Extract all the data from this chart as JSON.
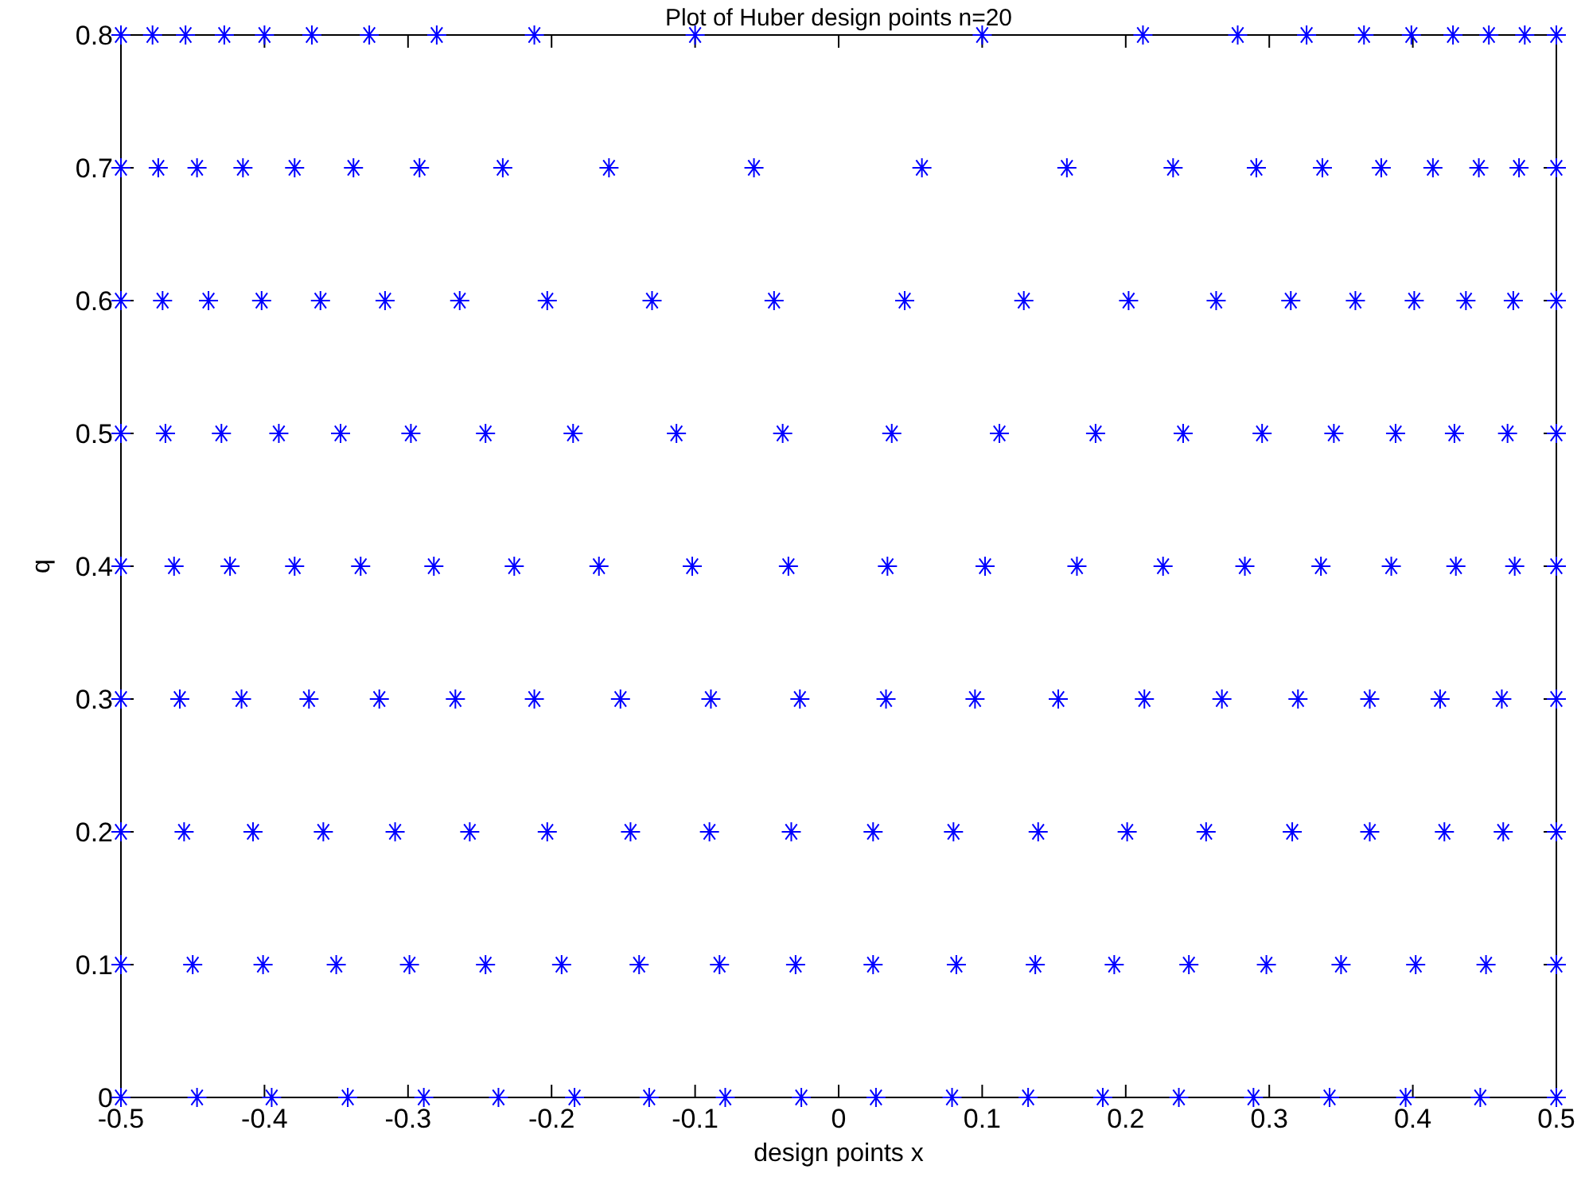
{
  "chart_data": {
    "type": "scatter",
    "title": "Plot of  Huber design points n=20",
    "xlabel": "design points x",
    "ylabel": "q",
    "marker": "cross",
    "grid": false,
    "xlim": [
      -0.5,
      0.5
    ],
    "xticks": [
      -0.5,
      -0.4,
      -0.3,
      -0.2,
      -0.1,
      0,
      0.1,
      0.2,
      0.3,
      0.4,
      0.5
    ],
    "ylim": [
      0,
      0.8
    ],
    "yticks": [
      0,
      0.1,
      0.2,
      0.3,
      0.4,
      0.5,
      0.6,
      0.7,
      0.8
    ],
    "series": [
      {
        "color": "#0000ff",
        "x": [
          -0.5,
          -0.478,
          -0.455,
          -0.428,
          -0.4,
          -0.367,
          -0.327,
          -0.28,
          -0.212,
          -0.1,
          0.1,
          0.212,
          0.278,
          0.326,
          0.366,
          0.399,
          0.428,
          0.453,
          0.478,
          0.5
        ],
        "values": [
          0.8,
          0.8,
          0.8,
          0.8,
          0.8,
          0.8,
          0.8,
          0.8,
          0.8,
          0.8,
          0.8,
          0.8,
          0.8,
          0.8,
          0.8,
          0.8,
          0.8,
          0.8,
          0.8,
          0.8
        ]
      },
      {
        "color": "#0000ff",
        "x": [
          -0.5,
          -0.474,
          -0.447,
          -0.415,
          -0.379,
          -0.338,
          -0.292,
          -0.234,
          -0.16,
          -0.059,
          0.058,
          0.159,
          0.233,
          0.291,
          0.337,
          0.378,
          0.414,
          0.446,
          0.474,
          0.5
        ],
        "values": [
          0.7,
          0.7,
          0.7,
          0.7,
          0.7,
          0.7,
          0.7,
          0.7,
          0.7,
          0.7,
          0.7,
          0.7,
          0.7,
          0.7,
          0.7,
          0.7,
          0.7,
          0.7,
          0.7,
          0.7
        ]
      },
      {
        "color": "#0000ff",
        "x": [
          -0.5,
          -0.471,
          -0.439,
          -0.402,
          -0.361,
          -0.316,
          -0.264,
          -0.203,
          -0.13,
          -0.045,
          0.046,
          0.129,
          0.202,
          0.263,
          0.315,
          0.36,
          0.401,
          0.437,
          0.47,
          0.5
        ],
        "values": [
          0.6,
          0.6,
          0.6,
          0.6,
          0.6,
          0.6,
          0.6,
          0.6,
          0.6,
          0.6,
          0.6,
          0.6,
          0.6,
          0.6,
          0.6,
          0.6,
          0.6,
          0.6,
          0.6,
          0.6
        ]
      },
      {
        "color": "#0000ff",
        "x": [
          -0.5,
          -0.469,
          -0.43,
          -0.39,
          -0.347,
          -0.298,
          -0.246,
          -0.185,
          -0.113,
          -0.039,
          0.037,
          0.112,
          0.179,
          0.24,
          0.295,
          0.345,
          0.388,
          0.429,
          0.466,
          0.5
        ],
        "values": [
          0.5,
          0.5,
          0.5,
          0.5,
          0.5,
          0.5,
          0.5,
          0.5,
          0.5,
          0.5,
          0.5,
          0.5,
          0.5,
          0.5,
          0.5,
          0.5,
          0.5,
          0.5,
          0.5,
          0.5
        ]
      },
      {
        "color": "#0000ff",
        "x": [
          -0.5,
          -0.463,
          -0.424,
          -0.379,
          -0.333,
          -0.282,
          -0.226,
          -0.167,
          -0.102,
          -0.035,
          0.034,
          0.102,
          0.166,
          0.226,
          0.283,
          0.336,
          0.385,
          0.43,
          0.471,
          0.5
        ],
        "values": [
          0.4,
          0.4,
          0.4,
          0.4,
          0.4,
          0.4,
          0.4,
          0.4,
          0.4,
          0.4,
          0.4,
          0.4,
          0.4,
          0.4,
          0.4,
          0.4,
          0.4,
          0.4,
          0.4,
          0.4
        ]
      },
      {
        "color": "#0000ff",
        "x": [
          -0.5,
          -0.459,
          -0.416,
          -0.369,
          -0.32,
          -0.267,
          -0.212,
          -0.152,
          -0.089,
          -0.027,
          0.033,
          0.095,
          0.153,
          0.213,
          0.267,
          0.32,
          0.37,
          0.419,
          0.462,
          0.5
        ],
        "values": [
          0.3,
          0.3,
          0.3,
          0.3,
          0.3,
          0.3,
          0.3,
          0.3,
          0.3,
          0.3,
          0.3,
          0.3,
          0.3,
          0.3,
          0.3,
          0.3,
          0.3,
          0.3,
          0.3,
          0.3
        ]
      },
      {
        "color": "#0000ff",
        "x": [
          -0.5,
          -0.456,
          -0.408,
          -0.359,
          -0.309,
          -0.257,
          -0.203,
          -0.145,
          -0.09,
          -0.033,
          0.024,
          0.08,
          0.139,
          0.201,
          0.256,
          0.316,
          0.37,
          0.422,
          0.463,
          0.5
        ],
        "values": [
          0.2,
          0.2,
          0.2,
          0.2,
          0.2,
          0.2,
          0.2,
          0.2,
          0.2,
          0.2,
          0.2,
          0.2,
          0.2,
          0.2,
          0.2,
          0.2,
          0.2,
          0.2,
          0.2,
          0.2
        ]
      },
      {
        "color": "#0000ff",
        "x": [
          -0.5,
          -0.45,
          -0.401,
          -0.35,
          -0.299,
          -0.246,
          -0.193,
          -0.139,
          -0.083,
          -0.03,
          0.024,
          0.082,
          0.137,
          0.192,
          0.244,
          0.298,
          0.35,
          0.402,
          0.451,
          0.5
        ],
        "values": [
          0.1,
          0.1,
          0.1,
          0.1,
          0.1,
          0.1,
          0.1,
          0.1,
          0.1,
          0.1,
          0.1,
          0.1,
          0.1,
          0.1,
          0.1,
          0.1,
          0.1,
          0.1,
          0.1,
          0.1
        ]
      },
      {
        "color": "#0000ff",
        "x": [
          -0.5,
          -0.447,
          -0.395,
          -0.342,
          -0.289,
          -0.237,
          -0.184,
          -0.132,
          -0.079,
          -0.026,
          0.026,
          0.079,
          0.132,
          0.184,
          0.237,
          0.289,
          0.342,
          0.395,
          0.447,
          0.5
        ],
        "values": [
          0,
          0,
          0,
          0,
          0,
          0,
          0,
          0,
          0,
          0,
          0,
          0,
          0,
          0,
          0,
          0,
          0,
          0,
          0,
          0
        ]
      }
    ]
  }
}
